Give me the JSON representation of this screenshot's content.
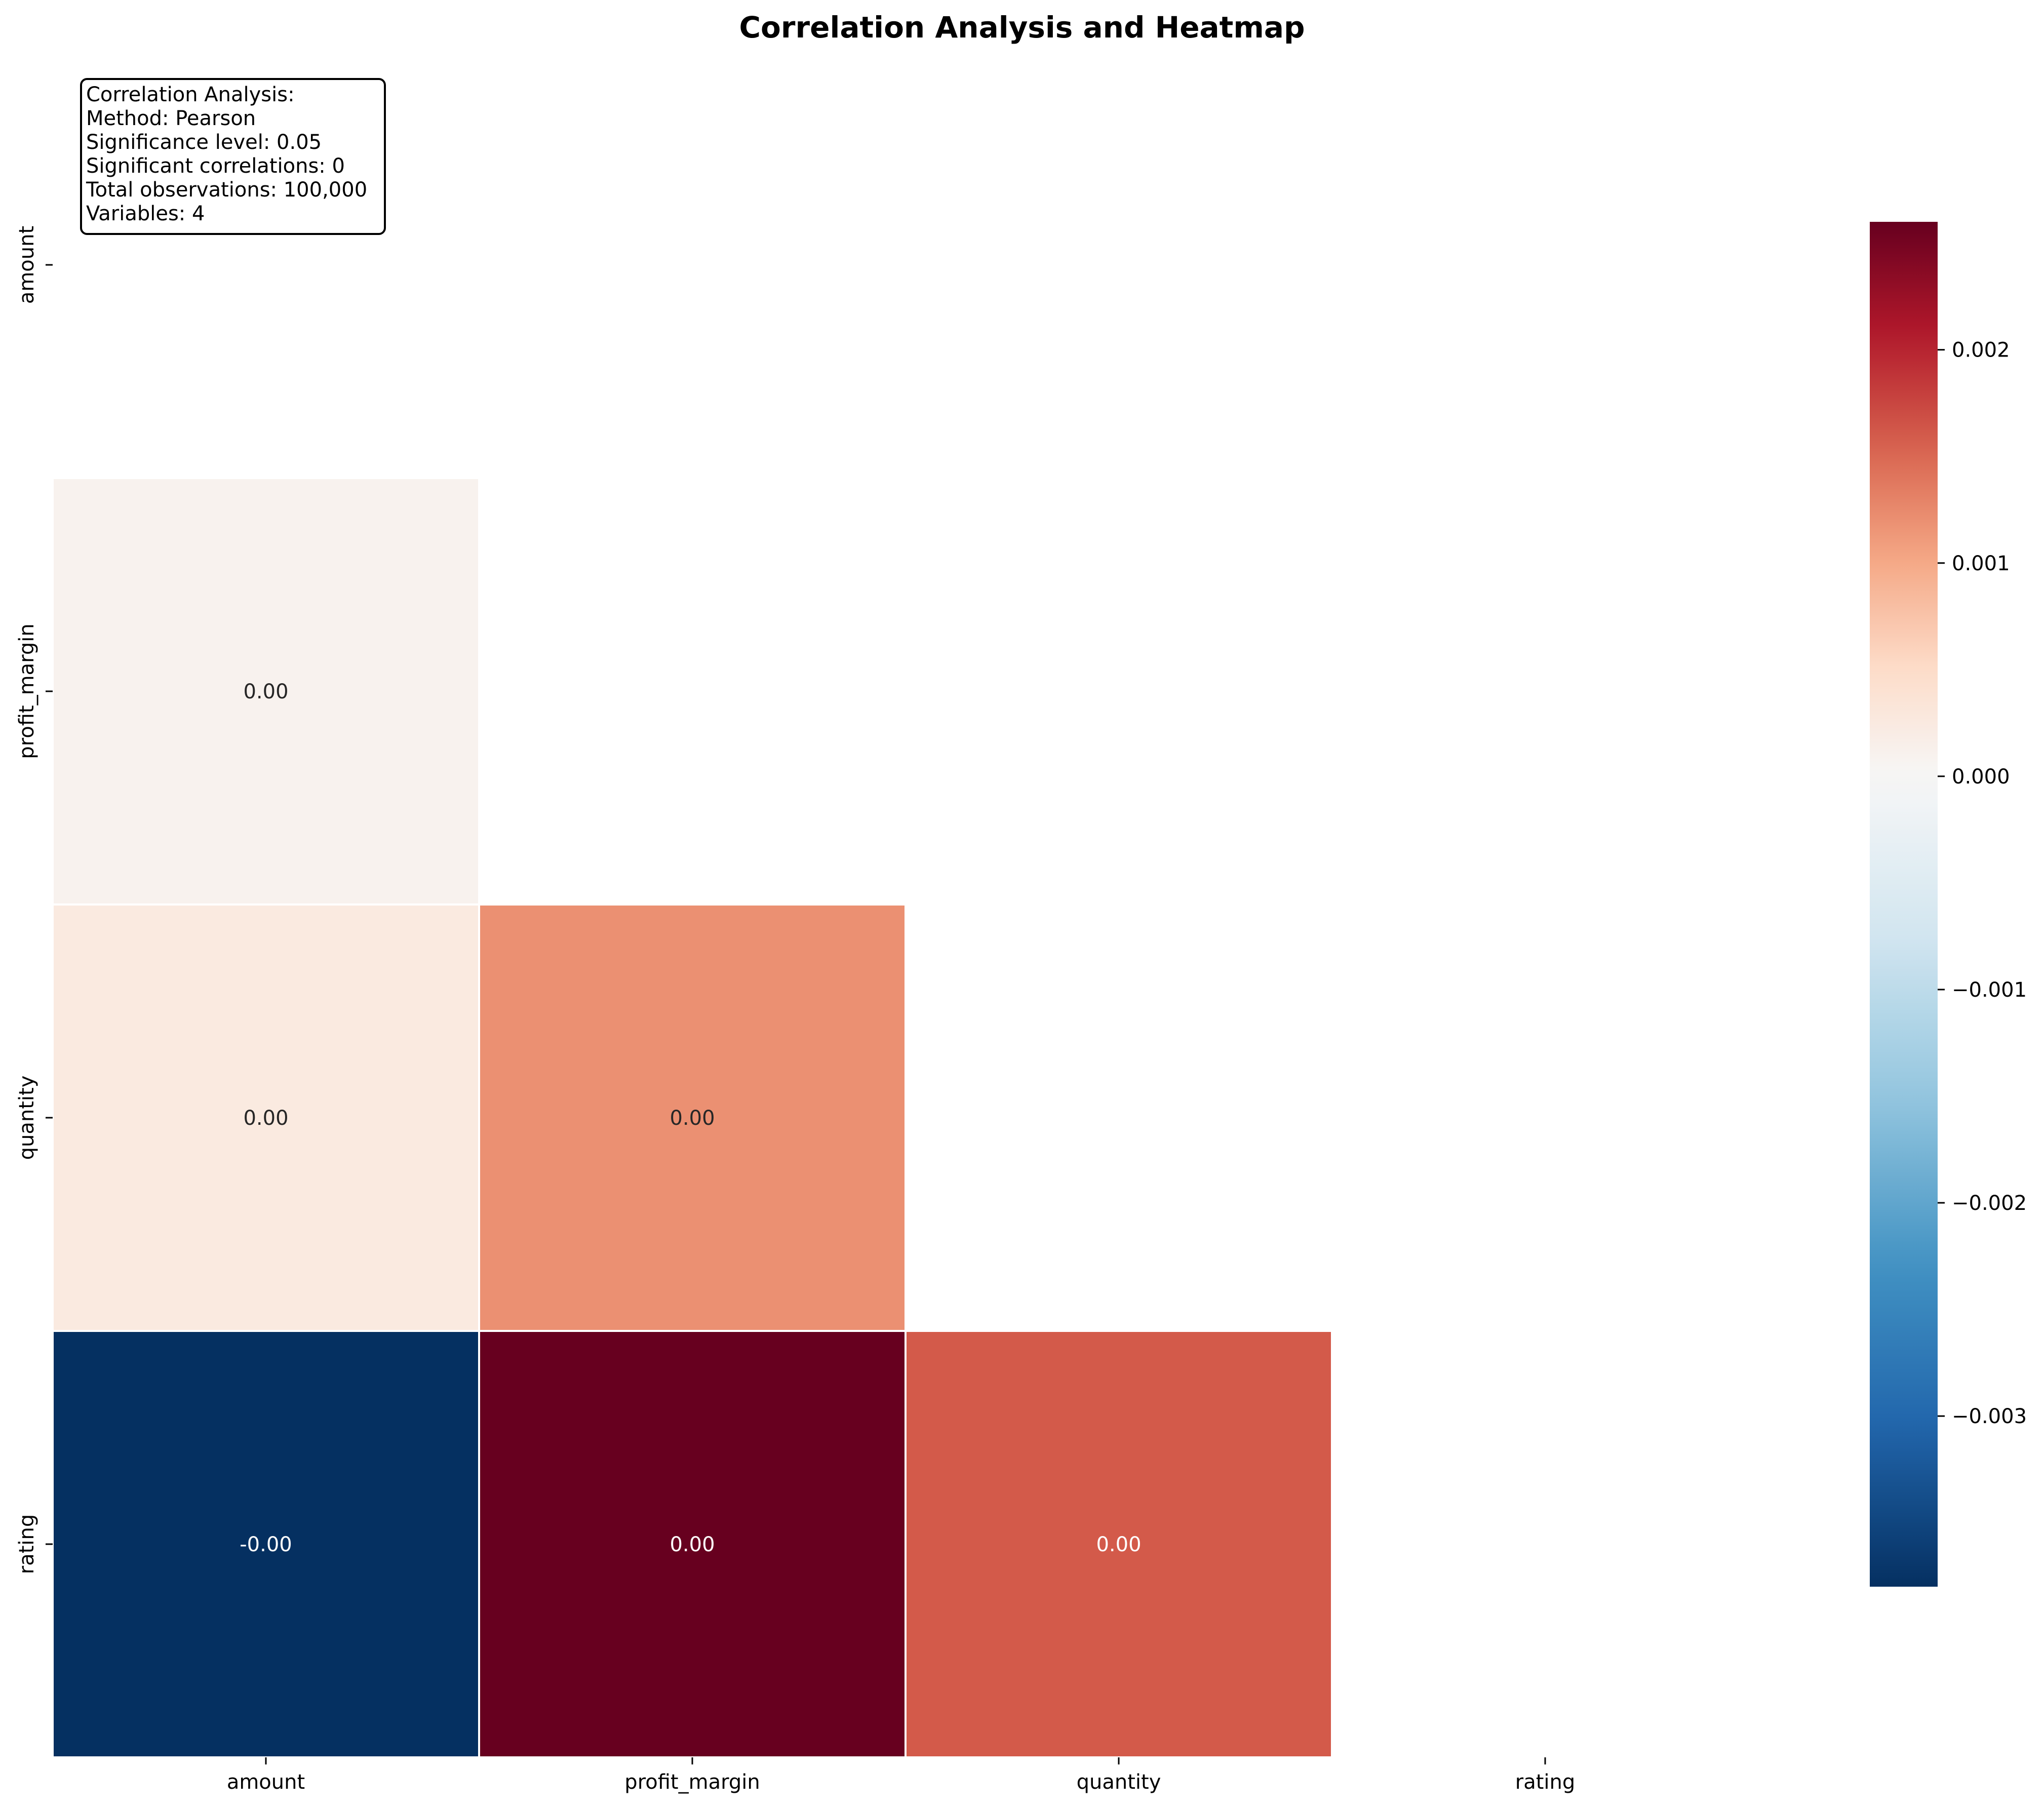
{
  "chart_data": {
    "type": "heatmap",
    "title": "Correlation Analysis and Heatmap",
    "xlabel": "",
    "ylabel": "",
    "variables": [
      "amount",
      "profit_margin",
      "quantity",
      "rating"
    ],
    "mask": "upper-triangle-including-diagonal",
    "cells": [
      {
        "row": "profit_margin",
        "col": "amount",
        "value": 0.0001,
        "label": "0.00"
      },
      {
        "row": "quantity",
        "col": "amount",
        "value": 0.00025,
        "label": "0.00"
      },
      {
        "row": "quantity",
        "col": "profit_margin",
        "value": 0.0012,
        "label": "0.00"
      },
      {
        "row": "rating",
        "col": "amount",
        "value": -0.0038,
        "label": "-0.00"
      },
      {
        "row": "rating",
        "col": "profit_margin",
        "value": 0.0026,
        "label": "0.00"
      },
      {
        "row": "rating",
        "col": "quantity",
        "value": 0.0016,
        "label": "0.00"
      }
    ],
    "colorbar": {
      "colormap": "RdBu_r",
      "vmin": -0.0038,
      "vmax": 0.0026,
      "center": 0,
      "ticks": [
        -0.003,
        -0.002,
        -0.001,
        0.0,
        0.001,
        0.002
      ],
      "tick_labels": [
        "−0.003",
        "−0.002",
        "−0.001",
        "0.000",
        "0.001",
        "0.002"
      ]
    },
    "annotation_box": {
      "lines": [
        "Correlation Analysis:",
        "Method: Pearson",
        "Significance level: 0.05",
        "Significant correlations: 0",
        "Total observations: 100,000",
        "Variables: 4"
      ],
      "placement": "top-left"
    },
    "grid": false
  }
}
